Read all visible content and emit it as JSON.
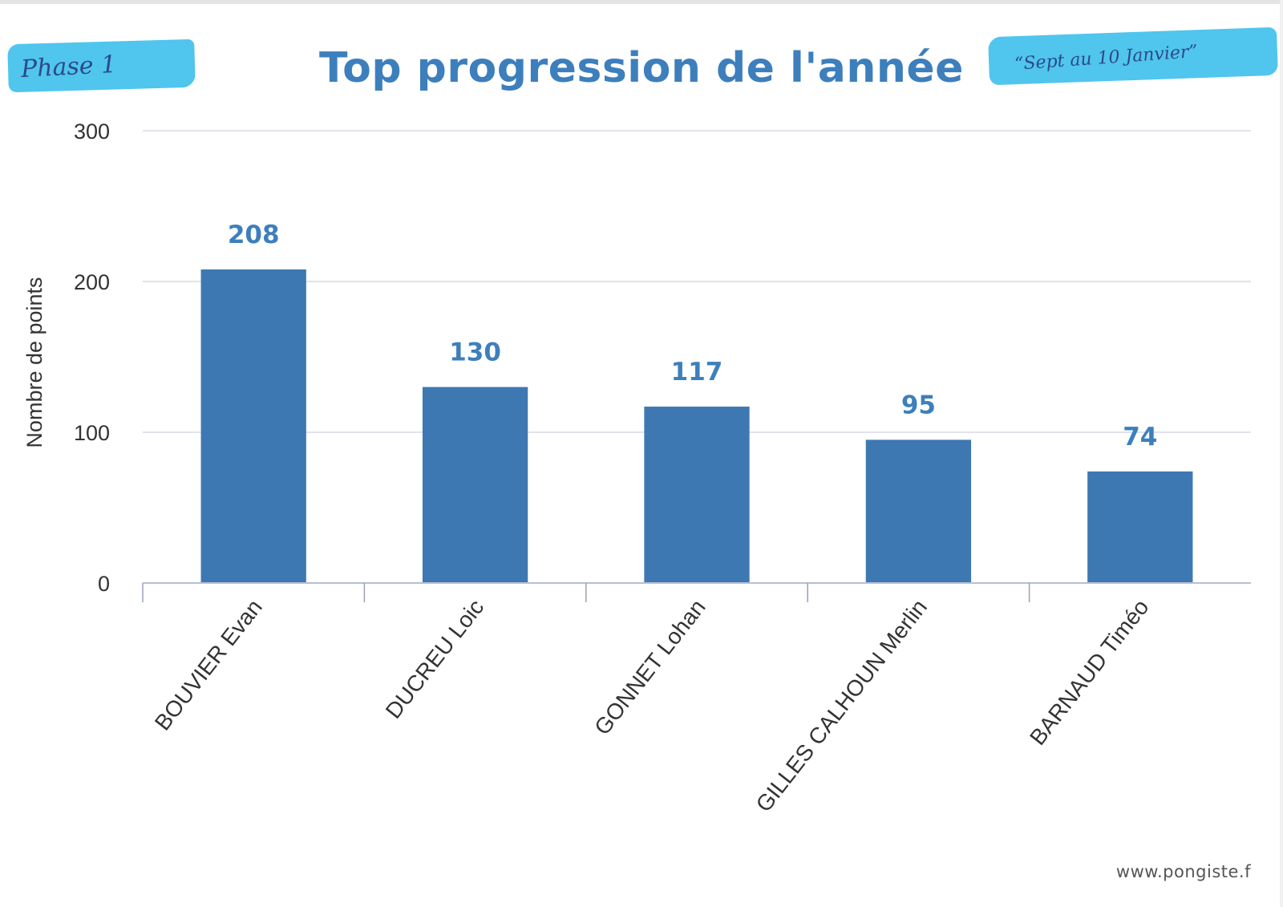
{
  "annotations": {
    "left": "Phase 1",
    "right": "“Sept au 10 Janvier”",
    "highlight_color": "#29b8ea",
    "ink_color": "#2a4a8a"
  },
  "footer": {
    "source": "www.pongiste.f"
  },
  "chart_data": {
    "type": "bar",
    "title": "Top progression de l'année",
    "xlabel": "",
    "ylabel": "Nombre de points",
    "categories": [
      "BOUVIER Evan",
      "DUCREU Loic",
      "GONNET Lohan",
      "GILLES CALHOUN Merlin",
      "BARNAUD Timéo"
    ],
    "values": [
      208,
      130,
      117,
      95,
      74
    ],
    "data_labels": [
      "208",
      "130",
      "117",
      "95",
      "74"
    ],
    "yticks": [
      "0",
      "100",
      "200",
      "300"
    ],
    "ylim": [
      0,
      300
    ],
    "grid": true,
    "legend": "none",
    "colors": {
      "bar": "#3e78b2",
      "label": "#3d7fbd",
      "title": "#3d7fbd",
      "axis_text": "#333333",
      "grid": "#d8d8e8"
    }
  }
}
